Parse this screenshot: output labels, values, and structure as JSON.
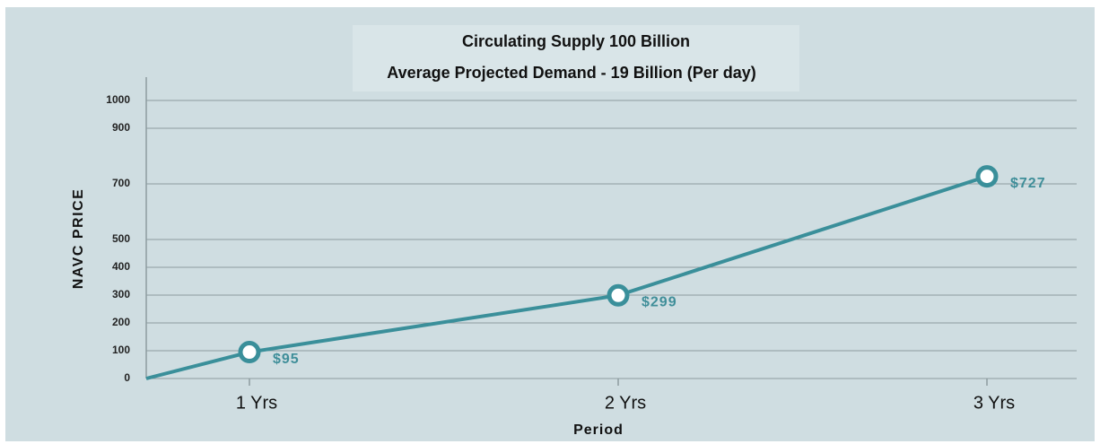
{
  "chart_data": {
    "type": "line",
    "title": "Circulating Supply 100 Billion",
    "subtitle": "Average Projected Demand - 19 Billion (Per day)",
    "y_label": "NAVC PRICE",
    "x_label": "Period",
    "categories": [
      "1 Yrs",
      "2 Yrs",
      "3 Yrs"
    ],
    "series": [
      {
        "name": "NAVC price",
        "color": "#3a8f9a",
        "values": [
          95,
          299,
          727
        ],
        "value_labels": [
          "$95",
          "$299",
          "$727"
        ]
      }
    ],
    "ylim": [
      0,
      1000
    ],
    "yticks": [
      0,
      100,
      200,
      300,
      400,
      500,
      700,
      900,
      1000
    ],
    "grid": true
  }
}
